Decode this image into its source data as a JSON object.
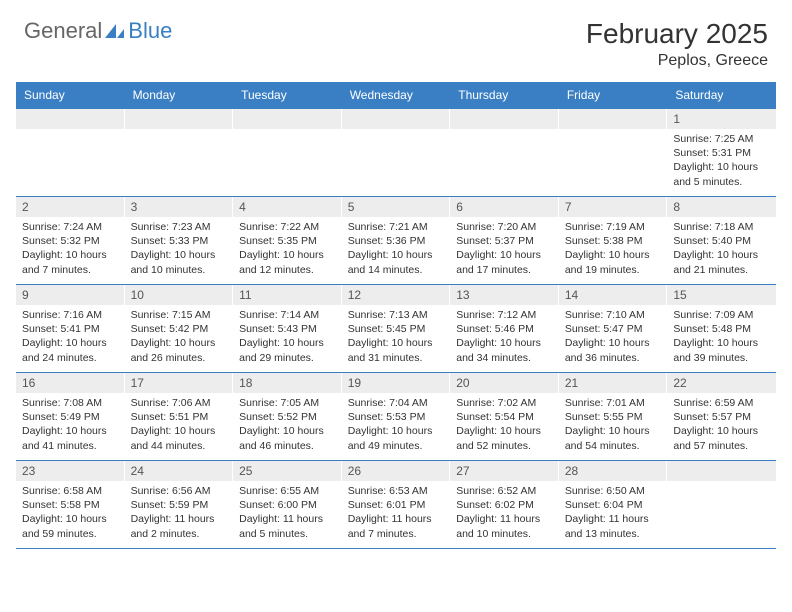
{
  "brand": {
    "part1": "General",
    "part2": "Blue"
  },
  "title": "February 2025",
  "location": "Peplos, Greece",
  "colors": {
    "accent": "#3a7fc4",
    "daynum_bg": "#ededed",
    "text": "#333333",
    "logo_gray": "#666666"
  },
  "dayHeaders": [
    "Sunday",
    "Monday",
    "Tuesday",
    "Wednesday",
    "Thursday",
    "Friday",
    "Saturday"
  ],
  "weeks": [
    [
      null,
      null,
      null,
      null,
      null,
      null,
      {
        "n": "1",
        "sr": "Sunrise: 7:25 AM",
        "ss": "Sunset: 5:31 PM",
        "dl": "Daylight: 10 hours and 5 minutes."
      }
    ],
    [
      {
        "n": "2",
        "sr": "Sunrise: 7:24 AM",
        "ss": "Sunset: 5:32 PM",
        "dl": "Daylight: 10 hours and 7 minutes."
      },
      {
        "n": "3",
        "sr": "Sunrise: 7:23 AM",
        "ss": "Sunset: 5:33 PM",
        "dl": "Daylight: 10 hours and 10 minutes."
      },
      {
        "n": "4",
        "sr": "Sunrise: 7:22 AM",
        "ss": "Sunset: 5:35 PM",
        "dl": "Daylight: 10 hours and 12 minutes."
      },
      {
        "n": "5",
        "sr": "Sunrise: 7:21 AM",
        "ss": "Sunset: 5:36 PM",
        "dl": "Daylight: 10 hours and 14 minutes."
      },
      {
        "n": "6",
        "sr": "Sunrise: 7:20 AM",
        "ss": "Sunset: 5:37 PM",
        "dl": "Daylight: 10 hours and 17 minutes."
      },
      {
        "n": "7",
        "sr": "Sunrise: 7:19 AM",
        "ss": "Sunset: 5:38 PM",
        "dl": "Daylight: 10 hours and 19 minutes."
      },
      {
        "n": "8",
        "sr": "Sunrise: 7:18 AM",
        "ss": "Sunset: 5:40 PM",
        "dl": "Daylight: 10 hours and 21 minutes."
      }
    ],
    [
      {
        "n": "9",
        "sr": "Sunrise: 7:16 AM",
        "ss": "Sunset: 5:41 PM",
        "dl": "Daylight: 10 hours and 24 minutes."
      },
      {
        "n": "10",
        "sr": "Sunrise: 7:15 AM",
        "ss": "Sunset: 5:42 PM",
        "dl": "Daylight: 10 hours and 26 minutes."
      },
      {
        "n": "11",
        "sr": "Sunrise: 7:14 AM",
        "ss": "Sunset: 5:43 PM",
        "dl": "Daylight: 10 hours and 29 minutes."
      },
      {
        "n": "12",
        "sr": "Sunrise: 7:13 AM",
        "ss": "Sunset: 5:45 PM",
        "dl": "Daylight: 10 hours and 31 minutes."
      },
      {
        "n": "13",
        "sr": "Sunrise: 7:12 AM",
        "ss": "Sunset: 5:46 PM",
        "dl": "Daylight: 10 hours and 34 minutes."
      },
      {
        "n": "14",
        "sr": "Sunrise: 7:10 AM",
        "ss": "Sunset: 5:47 PM",
        "dl": "Daylight: 10 hours and 36 minutes."
      },
      {
        "n": "15",
        "sr": "Sunrise: 7:09 AM",
        "ss": "Sunset: 5:48 PM",
        "dl": "Daylight: 10 hours and 39 minutes."
      }
    ],
    [
      {
        "n": "16",
        "sr": "Sunrise: 7:08 AM",
        "ss": "Sunset: 5:49 PM",
        "dl": "Daylight: 10 hours and 41 minutes."
      },
      {
        "n": "17",
        "sr": "Sunrise: 7:06 AM",
        "ss": "Sunset: 5:51 PM",
        "dl": "Daylight: 10 hours and 44 minutes."
      },
      {
        "n": "18",
        "sr": "Sunrise: 7:05 AM",
        "ss": "Sunset: 5:52 PM",
        "dl": "Daylight: 10 hours and 46 minutes."
      },
      {
        "n": "19",
        "sr": "Sunrise: 7:04 AM",
        "ss": "Sunset: 5:53 PM",
        "dl": "Daylight: 10 hours and 49 minutes."
      },
      {
        "n": "20",
        "sr": "Sunrise: 7:02 AM",
        "ss": "Sunset: 5:54 PM",
        "dl": "Daylight: 10 hours and 52 minutes."
      },
      {
        "n": "21",
        "sr": "Sunrise: 7:01 AM",
        "ss": "Sunset: 5:55 PM",
        "dl": "Daylight: 10 hours and 54 minutes."
      },
      {
        "n": "22",
        "sr": "Sunrise: 6:59 AM",
        "ss": "Sunset: 5:57 PM",
        "dl": "Daylight: 10 hours and 57 minutes."
      }
    ],
    [
      {
        "n": "23",
        "sr": "Sunrise: 6:58 AM",
        "ss": "Sunset: 5:58 PM",
        "dl": "Daylight: 10 hours and 59 minutes."
      },
      {
        "n": "24",
        "sr": "Sunrise: 6:56 AM",
        "ss": "Sunset: 5:59 PM",
        "dl": "Daylight: 11 hours and 2 minutes."
      },
      {
        "n": "25",
        "sr": "Sunrise: 6:55 AM",
        "ss": "Sunset: 6:00 PM",
        "dl": "Daylight: 11 hours and 5 minutes."
      },
      {
        "n": "26",
        "sr": "Sunrise: 6:53 AM",
        "ss": "Sunset: 6:01 PM",
        "dl": "Daylight: 11 hours and 7 minutes."
      },
      {
        "n": "27",
        "sr": "Sunrise: 6:52 AM",
        "ss": "Sunset: 6:02 PM",
        "dl": "Daylight: 11 hours and 10 minutes."
      },
      {
        "n": "28",
        "sr": "Sunrise: 6:50 AM",
        "ss": "Sunset: 6:04 PM",
        "dl": "Daylight: 11 hours and 13 minutes."
      },
      null
    ]
  ]
}
